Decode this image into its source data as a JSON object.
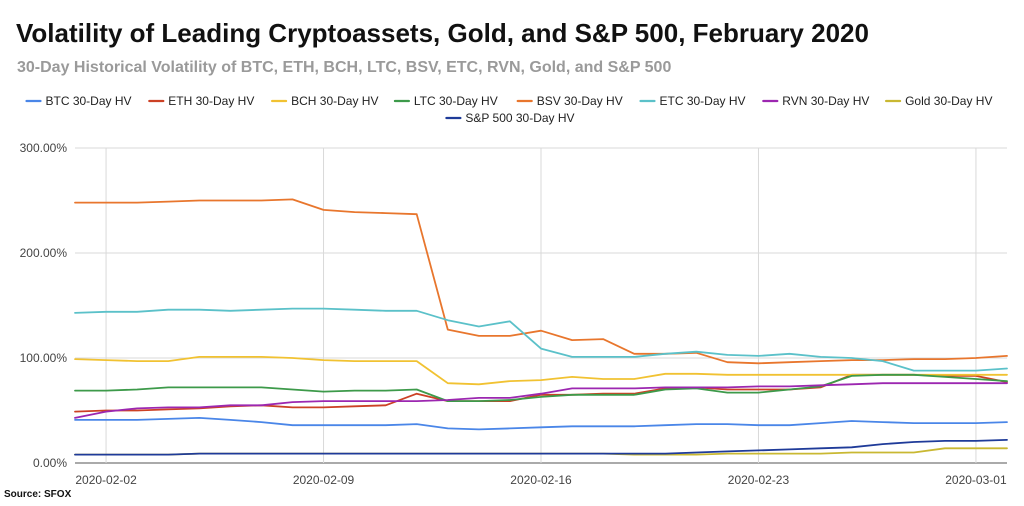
{
  "chart_data": {
    "type": "line",
    "title": "Volatility of Leading Cryptoassets, Gold, and S&P 500, February 2020",
    "subtitle": "30-Day Historical Volatility of BTC, ETH, BCH, LTC, BSV, ETC, RVN, Gold, and S&P 500",
    "source": "Source: SFOX",
    "xlabel": "",
    "ylabel": "",
    "x_tick_labels": [
      "2020-02-02",
      "2020-02-09",
      "2020-02-16",
      "2020-02-23",
      "2020-03-01"
    ],
    "y_tick_labels": [
      "0.00%",
      "100.00%",
      "200.00%",
      "300.00%"
    ],
    "ylim": [
      0,
      300
    ],
    "grid": true,
    "legend_position": "top",
    "x": [
      "2020-02-01",
      "2020-02-02",
      "2020-02-03",
      "2020-02-04",
      "2020-02-05",
      "2020-02-06",
      "2020-02-07",
      "2020-02-08",
      "2020-02-09",
      "2020-02-10",
      "2020-02-11",
      "2020-02-12",
      "2020-02-13",
      "2020-02-14",
      "2020-02-15",
      "2020-02-16",
      "2020-02-17",
      "2020-02-18",
      "2020-02-19",
      "2020-02-20",
      "2020-02-21",
      "2020-02-22",
      "2020-02-23",
      "2020-02-24",
      "2020-02-25",
      "2020-02-26",
      "2020-02-27",
      "2020-02-28",
      "2020-02-29",
      "2020-03-01",
      "2020-03-02"
    ],
    "series": [
      {
        "name": "BTC 30-Day HV",
        "color": "#4a86e8",
        "values": [
          41,
          41,
          41,
          42,
          43,
          41,
          39,
          36,
          36,
          36,
          36,
          37,
          33,
          32,
          33,
          34,
          35,
          35,
          35,
          36,
          37,
          37,
          36,
          36,
          38,
          40,
          39,
          38,
          38,
          38,
          39
        ]
      },
      {
        "name": "ETH 30-Day HV",
        "color": "#cc4125",
        "values": [
          49,
          50,
          50,
          51,
          52,
          54,
          55,
          53,
          53,
          54,
          55,
          66,
          59,
          59,
          59,
          65,
          65,
          66,
          66,
          71,
          72,
          70,
          70,
          70,
          72,
          84,
          84,
          84,
          83,
          83,
          77
        ]
      },
      {
        "name": "BCH 30-Day HV",
        "color": "#f1c232",
        "values": [
          99,
          98,
          97,
          97,
          101,
          101,
          101,
          100,
          98,
          97,
          97,
          97,
          76,
          75,
          78,
          79,
          82,
          80,
          80,
          85,
          85,
          84,
          84,
          84,
          84,
          84,
          84,
          84,
          84,
          84,
          84
        ]
      },
      {
        "name": "LTC 30-Day HV",
        "color": "#3d9a4a",
        "values": [
          69,
          69,
          70,
          72,
          72,
          72,
          72,
          70,
          68,
          69,
          69,
          70,
          59,
          59,
          60,
          63,
          65,
          65,
          65,
          70,
          71,
          67,
          67,
          70,
          73,
          83,
          84,
          84,
          82,
          80,
          78
        ]
      },
      {
        "name": "BSV 30-Day HV",
        "color": "#e8762d",
        "values": [
          248,
          248,
          248,
          249,
          250,
          250,
          250,
          251,
          241,
          239,
          238,
          237,
          127,
          121,
          121,
          126,
          117,
          118,
          104,
          104,
          105,
          96,
          95,
          96,
          97,
          98,
          98,
          99,
          99,
          100,
          102
        ]
      },
      {
        "name": "ETC 30-Day HV",
        "color": "#5bc1c9",
        "values": [
          143,
          144,
          144,
          146,
          146,
          145,
          146,
          147,
          147,
          146,
          145,
          145,
          136,
          130,
          135,
          109,
          101,
          101,
          101,
          104,
          106,
          103,
          102,
          104,
          101,
          100,
          97,
          88,
          88,
          88,
          90
        ]
      },
      {
        "name": "RVN 30-Day HV",
        "color": "#9c27b0",
        "values": [
          43,
          49,
          52,
          53,
          53,
          55,
          55,
          58,
          59,
          59,
          59,
          59,
          60,
          62,
          62,
          66,
          71,
          71,
          71,
          72,
          72,
          72,
          73,
          73,
          74,
          75,
          76,
          76,
          76,
          76,
          76
        ]
      },
      {
        "name": "Gold 30-Day HV",
        "color": "#c9b832",
        "values": [
          8,
          8,
          8,
          8,
          9,
          9,
          9,
          9,
          9,
          9,
          9,
          9,
          9,
          9,
          9,
          9,
          9,
          9,
          8,
          8,
          8,
          9,
          9,
          9,
          9,
          10,
          10,
          10,
          14,
          14,
          14
        ]
      },
      {
        "name": "S&P 500 30-Day HV",
        "color": "#1f3b99",
        "values": [
          8,
          8,
          8,
          8,
          9,
          9,
          9,
          9,
          9,
          9,
          9,
          9,
          9,
          9,
          9,
          9,
          9,
          9,
          9,
          9,
          10,
          11,
          12,
          13,
          14,
          15,
          18,
          20,
          21,
          21,
          22
        ]
      }
    ]
  }
}
